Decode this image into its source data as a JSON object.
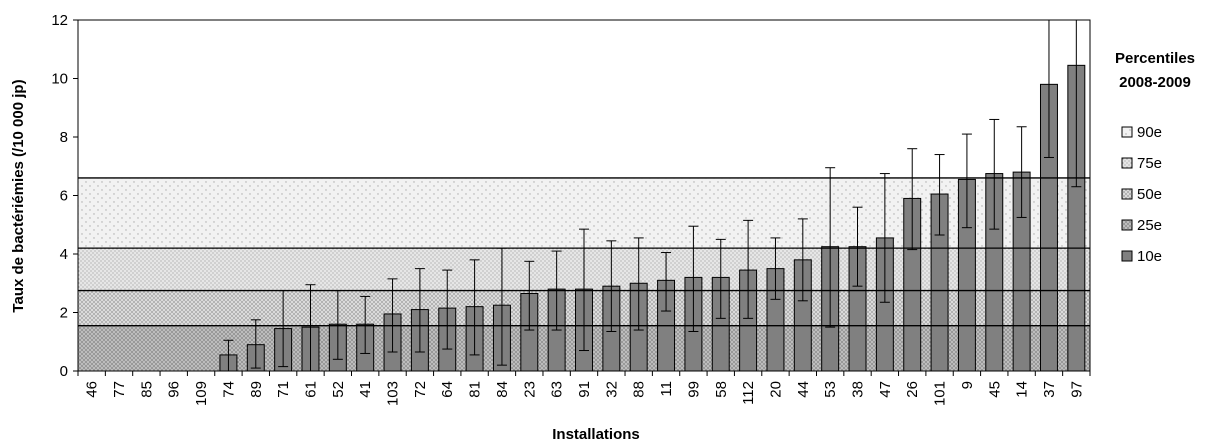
{
  "chart_data": {
    "type": "bar",
    "title": "",
    "xlabel": "Installations",
    "ylabel": "Taux de bactériémies (/10 000 jp)",
    "ylim": [
      0,
      12
    ],
    "yticks": [
      0,
      2,
      4,
      6,
      8,
      10,
      12
    ],
    "grid": false,
    "categories": [
      "46",
      "77",
      "85",
      "96",
      "109",
      "74",
      "89",
      "71",
      "61",
      "52",
      "41",
      "103",
      "72",
      "64",
      "81",
      "84",
      "23",
      "63",
      "91",
      "32",
      "88",
      "11",
      "99",
      "58",
      "112",
      "20",
      "44",
      "53",
      "38",
      "47",
      "26",
      "101",
      "9",
      "45",
      "14",
      "37",
      "97"
    ],
    "values": [
      0,
      0,
      0,
      0,
      0,
      0.55,
      0.9,
      1.45,
      1.5,
      1.6,
      1.6,
      1.95,
      2.1,
      2.15,
      2.2,
      2.25,
      2.65,
      2.8,
      2.8,
      2.9,
      3.0,
      3.1,
      3.2,
      3.2,
      3.45,
      3.5,
      3.8,
      4.25,
      4.25,
      4.55,
      5.9,
      6.05,
      6.55,
      6.75,
      6.8,
      9.8,
      10.45
    ],
    "error_low": [
      0,
      0,
      0,
      0,
      0,
      0,
      0.1,
      0.15,
      0,
      0.4,
      0.6,
      0.65,
      0.65,
      0.75,
      0.55,
      0.2,
      1.4,
      1.4,
      0.7,
      1.35,
      1.4,
      2.05,
      1.35,
      1.8,
      1.8,
      2.45,
      2.4,
      1.5,
      2.9,
      2.35,
      4.15,
      4.65,
      4.9,
      4.85,
      5.25,
      7.3,
      6.3
    ],
    "error_high": [
      0,
      0,
      0,
      0,
      0,
      1.05,
      1.75,
      2.75,
      2.95,
      2.75,
      2.55,
      3.15,
      3.5,
      3.45,
      3.8,
      4.2,
      3.75,
      4.1,
      4.85,
      4.45,
      4.55,
      4.05,
      4.95,
      4.5,
      5.15,
      4.55,
      5.2,
      6.95,
      5.6,
      6.75,
      7.6,
      7.4,
      8.1,
      8.6,
      8.35,
      12,
      12
    ],
    "percentile_bands": {
      "title_line1": "Percentiles",
      "title_line2": "2008-2009",
      "bands": [
        {
          "name": "90e",
          "value": 6.6,
          "color": "#eeeeee"
        },
        {
          "name": "75e",
          "value": 4.2,
          "color": "#dddddd"
        },
        {
          "name": "50e",
          "value": 2.75,
          "color": "#cccccc"
        },
        {
          "name": "25e",
          "value": 1.55,
          "color": "#b8b8b8"
        },
        {
          "name": "10e",
          "value": 0,
          "color": "#808080"
        }
      ]
    },
    "bar_color": "#808080"
  }
}
